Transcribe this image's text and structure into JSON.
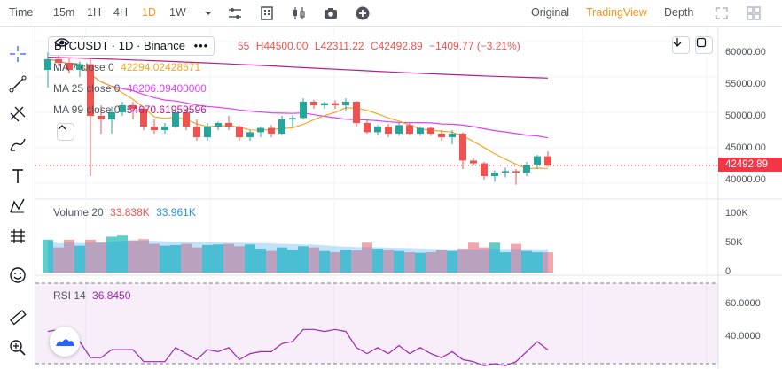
{
  "toolbar": {
    "time_label": "Time",
    "intervals": [
      "15m",
      "1H",
      "4H",
      "1D",
      "1W"
    ],
    "active_interval": "1D",
    "views": [
      "Original",
      "TradingView",
      "Depth"
    ],
    "active_view": "TradingView",
    "colors": {
      "active": "#f7931a",
      "text": "#50535e"
    }
  },
  "symbol": {
    "pair": "BTCUSDT",
    "interval": "1D",
    "exchange": "Binance",
    "separator": "·"
  },
  "ohlc": {
    "o_fragment": "55",
    "high": "H44500.00",
    "low": "L42311.22",
    "close": "C42492.89",
    "change": "−1409.77 (−3.21%)"
  },
  "moving_averages": [
    {
      "label": "MA 7 close 0",
      "value": "42294.02428571",
      "color": "#f5a623"
    },
    {
      "label": "MA 25 close 0",
      "value": "46206.09400000",
      "color": "#e040fb"
    },
    {
      "label": "MA 99 close 0",
      "value": "54670.61959596",
      "color": "#b71c8c"
    }
  ],
  "volume": {
    "label": "Volume 20",
    "value1": "33.838K",
    "value2": "33.961K",
    "axis": [
      "100K",
      "50K",
      "0"
    ]
  },
  "rsi": {
    "label": "RSI 14",
    "value": "36.8450",
    "axis": [
      "60.0000",
      "40.0000"
    ]
  },
  "price_axis": [
    "60000.00",
    "55000.00",
    "50000.00",
    "45000.00",
    "40000.00"
  ],
  "last_price": "42492.89",
  "colors": {
    "up": "#26a69a",
    "down": "#ef5350",
    "up_vol": "#4dc9c2",
    "down_vol": "#f49ba1",
    "ma7": "#f5a623",
    "ma25": "#e040fb",
    "ma99": "#b71c8c",
    "rsi": "#9c27b0"
  },
  "chart_data": {
    "type": "candlestick",
    "y_range": [
      38000,
      62000
    ],
    "candles": [
      [
        56000,
        58500,
        53500,
        57500
      ],
      [
        57500,
        58000,
        56500,
        57000
      ],
      [
        57000,
        57800,
        55500,
        56000
      ],
      [
        56000,
        57200,
        55000,
        56800
      ],
      [
        56800,
        57500,
        41000,
        49500
      ],
      [
        49500,
        51000,
        47000,
        49000
      ],
      [
        49000,
        50800,
        47000,
        50000
      ],
      [
        50000,
        51500,
        49500,
        51000
      ],
      [
        51000,
        51500,
        49000,
        50500
      ],
      [
        50500,
        50700,
        47500,
        48000
      ],
      [
        48000,
        49000,
        47000,
        47500
      ],
      [
        47500,
        48500,
        47000,
        48000
      ],
      [
        48000,
        50500,
        47800,
        50000
      ],
      [
        50000,
        50500,
        47500,
        48000
      ],
      [
        48000,
        49000,
        46000,
        46500
      ],
      [
        46500,
        48500,
        46000,
        48000
      ],
      [
        48000,
        48700,
        47500,
        48500
      ],
      [
        48500,
        49500,
        47500,
        48000
      ],
      [
        48000,
        48200,
        46000,
        46500
      ],
      [
        46500,
        47500,
        46000,
        47200
      ],
      [
        47200,
        48000,
        46500,
        47800
      ],
      [
        47800,
        48200,
        46500,
        47000
      ],
      [
        47000,
        49500,
        46800,
        49000
      ],
      [
        49000,
        49600,
        48000,
        49200
      ],
      [
        49200,
        52000,
        49000,
        51500
      ],
      [
        51500,
        51800,
        50500,
        51000
      ],
      [
        51000,
        51500,
        50500,
        51300
      ],
      [
        51300,
        51700,
        50500,
        51000
      ],
      [
        51000,
        52000,
        50200,
        51500
      ],
      [
        51500,
        51600,
        48000,
        48500
      ],
      [
        48500,
        49000,
        47000,
        47200
      ],
      [
        47200,
        48200,
        46800,
        48000
      ],
      [
        48000,
        48400,
        46500,
        47000
      ],
      [
        47000,
        48500,
        46700,
        48200
      ],
      [
        48200,
        48500,
        46800,
        47000
      ],
      [
        47000,
        48000,
        46700,
        47800
      ],
      [
        47800,
        48000,
        46700,
        47000
      ],
      [
        47000,
        47500,
        46000,
        46500
      ],
      [
        46500,
        47500,
        45500,
        47000
      ],
      [
        47000,
        47200,
        42000,
        43200
      ],
      [
        43200,
        43600,
        42500,
        42800
      ],
      [
        42800,
        43000,
        40500,
        41000
      ],
      [
        41000,
        41800,
        40200,
        41500
      ],
      [
        41500,
        42200,
        40800,
        41700
      ],
      [
        41700,
        42000,
        39800,
        41500
      ],
      [
        41500,
        43000,
        41000,
        42600
      ],
      [
        42600,
        44000,
        42000,
        43800
      ],
      [
        43800,
        44500,
        42300,
        42493
      ]
    ],
    "volume_range": [
      0,
      120000
    ],
    "volumes": [
      55000,
      42000,
      55000,
      45000,
      55000,
      50000,
      60000,
      62000,
      54000,
      56000,
      48000,
      45000,
      46000,
      48000,
      42000,
      46000,
      47000,
      48000,
      44000,
      47000,
      40000,
      36000,
      42000,
      38000,
      44000,
      42000,
      36000,
      34000,
      38000,
      37000,
      50000,
      40000,
      38000,
      36000,
      34000,
      33000,
      34000,
      38000,
      36000,
      40000,
      50000,
      42000,
      50000,
      34000,
      48000,
      36000,
      34000,
      33838
    ],
    "rsi_range": [
      30,
      70
    ],
    "rsi": [
      46,
      47,
      46,
      41,
      33,
      33,
      37,
      37,
      37,
      31,
      31,
      31,
      38,
      35,
      32,
      37,
      36,
      38,
      32,
      35,
      36,
      36,
      40,
      41,
      47,
      47,
      46,
      47,
      46,
      38,
      35,
      38,
      35,
      39,
      35,
      38,
      35,
      33,
      36,
      32,
      31,
      29,
      30,
      29,
      31,
      36,
      41,
      36.8
    ]
  }
}
